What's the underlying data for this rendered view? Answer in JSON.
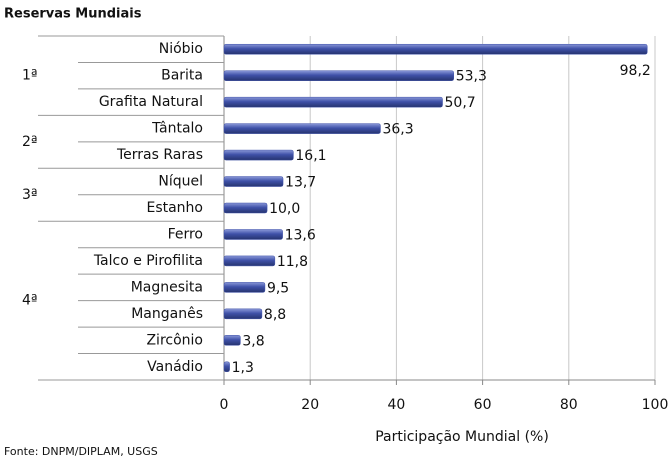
{
  "chart_data": {
    "type": "bar",
    "orientation": "horizontal",
    "title": "Reservas Mundiais",
    "categories": [
      "Nióbio",
      "Barita",
      "Grafita Natural",
      "Tântalo",
      "Terras Raras",
      "Níquel",
      "Estanho",
      "Ferro",
      "Talco e Pirofilita",
      "Magnesita",
      "Manganês",
      "Zircônio",
      "Vanádio"
    ],
    "ranks": [
      "1ª",
      null,
      null,
      "2ª",
      null,
      "3ª",
      null,
      "4ª",
      null,
      null,
      null,
      null,
      null
    ],
    "values": [
      98.2,
      53.3,
      50.7,
      36.3,
      16.1,
      13.7,
      10.0,
      13.6,
      11.8,
      9.5,
      8.8,
      3.8,
      1.3
    ],
    "value_labels": [
      "98,2",
      "53,3",
      "50,7",
      "36,3",
      "16,1",
      "13,7",
      "10,0",
      "13,6",
      "11,8",
      "9,5",
      "8,8",
      "3,8",
      "1,3"
    ],
    "color": "#3f51a8",
    "xlim": [
      0,
      100
    ],
    "xticks": [
      0,
      20,
      40,
      60,
      80,
      100
    ],
    "grid": true,
    "xlabel": "Participação Mundial (%)",
    "source": "Fonte: DNPM/DIPLAM, USGS"
  }
}
